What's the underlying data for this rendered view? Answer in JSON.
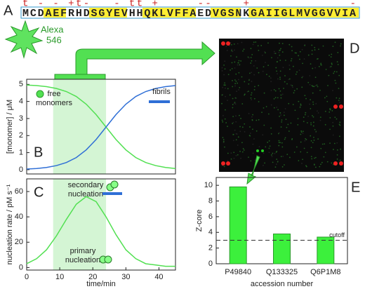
{
  "panel_labels": [
    "A",
    "B",
    "C",
    "D",
    "E"
  ],
  "panel_a": {
    "sequence": "MCDAEFRHDSGYEVHHQKLVFFAEDVGSNKGAIIGLMVGGVVIA",
    "charges": "t - - +t-   - tt +     --    +             -",
    "dye": [
      "Alexa",
      "546"
    ]
  },
  "chart_data": [
    {
      "type": "line",
      "ylabel": "[monomer] / μM",
      "x": [
        0,
        3,
        6,
        9,
        12,
        15,
        18,
        21,
        24,
        27,
        30,
        33,
        36,
        39,
        42,
        45
      ],
      "xlim": [
        0,
        45
      ],
      "ylim": [
        -0.25,
        5.3
      ],
      "yticks": [
        0,
        1,
        2,
        3,
        4,
        5
      ],
      "shaded": [
        8,
        24
      ],
      "series": [
        {
          "name": "free monomers",
          "color": "#52e052",
          "values": [
            4.96,
            4.93,
            4.87,
            4.76,
            4.58,
            4.29,
            3.84,
            3.23,
            2.5,
            1.77,
            1.16,
            0.71,
            0.42,
            0.24,
            0.13,
            0.07
          ]
        },
        {
          "name": "fibrils",
          "color": "#2f6fd6",
          "values": [
            0.04,
            0.07,
            0.13,
            0.24,
            0.42,
            0.71,
            1.16,
            1.77,
            2.5,
            3.23,
            3.84,
            4.29,
            4.58,
            4.76,
            4.87,
            4.93
          ]
        }
      ]
    },
    {
      "type": "line",
      "ylabel": "nucleation rate / pM s⁻¹",
      "xlabel": "time/min",
      "x": [
        0,
        3,
        6,
        9,
        12,
        15,
        18,
        21,
        24,
        27,
        30,
        33,
        36,
        39,
        42,
        45
      ],
      "xlim": [
        0,
        45
      ],
      "xticks": [
        0,
        10,
        20,
        30,
        40
      ],
      "ylim": [
        -2,
        70
      ],
      "yticks": [
        0,
        20,
        40,
        60
      ],
      "shaded": [
        8,
        24
      ],
      "color": "#52e052",
      "values": [
        3,
        7,
        14,
        25,
        38,
        50,
        56,
        52,
        40,
        26,
        14,
        7,
        3,
        2,
        1,
        1
      ],
      "annotations": [
        "secondary nucleation",
        "primary nucleation"
      ]
    },
    {
      "type": "bar",
      "ylabel": "Z-core",
      "xlabel": "accession number",
      "categories": [
        "P49840",
        "Q133325",
        "Q6P1M8"
      ],
      "values": [
        9.8,
        3.8,
        3.4
      ],
      "color": "#3cf03c",
      "ylim": [
        0,
        11
      ],
      "yticks": [
        0,
        2,
        4,
        6,
        8,
        10
      ],
      "cutoff": 3,
      "cutoff_label": "cutoff"
    }
  ]
}
